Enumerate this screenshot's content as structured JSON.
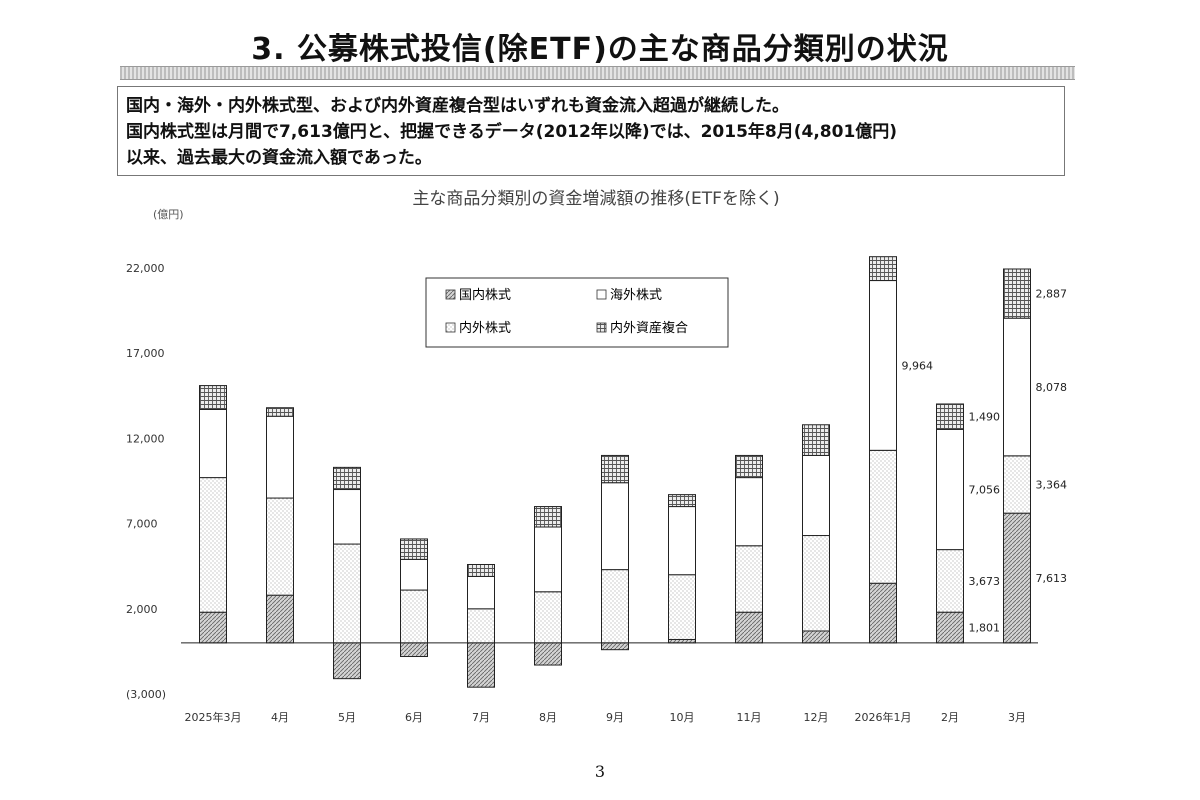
{
  "page": {
    "title": "3. 公募株式投信(除ETF)の主な商品分類別の状況",
    "summary": [
      "国内・海外・内外株式型、および内外資産複合型はいずれも資金流入超過が継続した。",
      "国内株式型は月間で7,613億円と、把握できるデータ(2012年以降)では、2015年8月(4,801億円)",
      "以来、過去最大の資金流入額であった。"
    ],
    "page_number": "3"
  },
  "chart_data": {
    "type": "bar",
    "stacked": true,
    "title": "主な商品分類別の資金増減額の推移(ETFを除く)",
    "ylabel": "(億円)",
    "ylim": [
      -3000,
      24000
    ],
    "yticks": [
      -3000,
      2000,
      7000,
      12000,
      17000,
      22000
    ],
    "ytick_labels": [
      "(3,000)",
      "2,000",
      "7,000",
      "12,000",
      "17,000",
      "22,000"
    ],
    "categories": [
      "2025年3月",
      "4月",
      "5月",
      "6月",
      "7月",
      "8月",
      "9月",
      "10月",
      "11月",
      "12月",
      "2026年1月",
      "2月",
      "3月"
    ],
    "legend_position": "top-center",
    "series": [
      {
        "name": "国内株式",
        "pattern": "hatch",
        "values": [
          1800,
          2800,
          -2100,
          -800,
          -2600,
          -1300,
          -400,
          200,
          1800,
          700,
          3500,
          1801,
          7613
        ]
      },
      {
        "name": "内外株式",
        "pattern": "dots",
        "values": [
          7900,
          5700,
          5800,
          3100,
          2000,
          3000,
          4300,
          3800,
          3900,
          5600,
          7800,
          3673,
          3364
        ]
      },
      {
        "name": "海外株式",
        "pattern": "blank",
        "values": [
          4000,
          4800,
          3200,
          1800,
          1900,
          3800,
          5100,
          4000,
          4000,
          4700,
          9964,
          7056,
          8078
        ]
      },
      {
        "name": "内外資産複合",
        "pattern": "grid",
        "values": [
          1400,
          500,
          1300,
          1200,
          700,
          1200,
          1600,
          700,
          1300,
          1800,
          1400,
          1490,
          2887
        ]
      }
    ],
    "data_labels": [
      {
        "category": "2026年1月",
        "series": "海外株式",
        "text": "9,964"
      },
      {
        "category": "2月",
        "series": "内外資産複合",
        "text": "1,490"
      },
      {
        "category": "2月",
        "series": "海外株式",
        "text": "7,056"
      },
      {
        "category": "2月",
        "series": "内外株式",
        "text": "3,673"
      },
      {
        "category": "2月",
        "series": "国内株式",
        "text": "1,801"
      },
      {
        "category": "3月",
        "series": "内外資産複合",
        "text": "2,887"
      },
      {
        "category": "3月",
        "series": "海外株式",
        "text": "8,078"
      },
      {
        "category": "3月",
        "series": "内外株式",
        "text": "3,364"
      },
      {
        "category": "3月",
        "series": "国内株式",
        "text": "7,613"
      }
    ]
  }
}
